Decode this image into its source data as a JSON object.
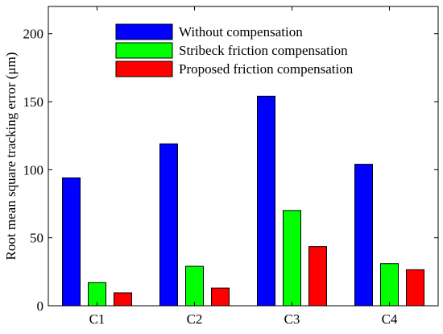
{
  "chart_data": {
    "type": "bar",
    "title": "",
    "xlabel": "",
    "ylabel": "Root mean square tracking error (μm)",
    "categories": [
      "C1",
      "C2",
      "C3",
      "C4"
    ],
    "ylim": [
      0,
      220
    ],
    "yticks": [
      0,
      50,
      100,
      150,
      200
    ],
    "grid": false,
    "legend_position": "top-center",
    "series": [
      {
        "name": "Without compensation",
        "color": "#0000ff",
        "values": [
          94,
          119,
          154,
          104
        ]
      },
      {
        "name": "Stribeck friction compensation",
        "color": "#00ff00",
        "values": [
          17,
          29,
          70,
          31
        ]
      },
      {
        "name": "Proposed friction compensation",
        "color": "#ff0000",
        "values": [
          9.5,
          13,
          43.5,
          26.5
        ]
      }
    ]
  }
}
